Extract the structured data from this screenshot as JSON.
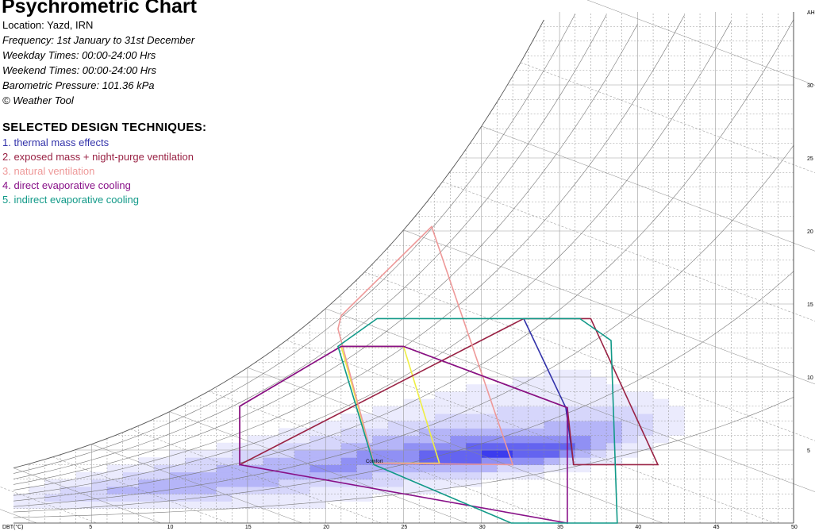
{
  "header": {
    "title": "Psychrometric Chart",
    "location": "Location: Yazd, IRN",
    "frequency": "Frequency: 1st January to 31st December",
    "weekday": "Weekday Times: 00:00-24:00 Hrs",
    "weekend": "Weekend Times: 00:00-24:00 Hrs",
    "pressure": "Barometric Pressure: 101.36 kPa",
    "credit": "© Weather Tool"
  },
  "techniques": {
    "heading": "SELECTED DESIGN TECHNIQUES:",
    "items": [
      {
        "label": "1. thermal mass effects",
        "color": "#3333aa"
      },
      {
        "label": "2. exposed mass + night-purge ventilation",
        "color": "#992244"
      },
      {
        "label": "3. natural ventilation",
        "color": "#ee9999"
      },
      {
        "label": "4. direct evaporative cooling",
        "color": "#881188"
      },
      {
        "label": "5. indirect evaporative cooling",
        "color": "#119988"
      }
    ]
  },
  "chart_data": {
    "type": "heatmap",
    "xlabel": "DBT(°C)",
    "ylabel": "AH",
    "xlim": [
      0,
      50
    ],
    "ylim": [
      0,
      35
    ],
    "x_ticks": [
      5,
      10,
      15,
      20,
      25,
      30,
      35,
      40,
      45,
      50
    ],
    "y_ticks": [
      5,
      10,
      15,
      20,
      25,
      30
    ],
    "grid": true,
    "comfort_label": "Comfort",
    "zones": [
      {
        "name": "comfort",
        "color": "#eeee44",
        "points": [
          [
            21,
            12.1
          ],
          [
            25,
            12.1
          ],
          [
            27.3,
            4.1
          ],
          [
            23.1,
            4.1
          ]
        ]
      },
      {
        "name": "thermal mass effects",
        "color": "#3333aa",
        "points": [
          [
            32.7,
            14
          ],
          [
            35.4,
            7.9
          ],
          [
            35.9,
            4
          ]
        ]
      },
      {
        "name": "exposed mass + night-purge ventilation",
        "color": "#992244",
        "points": [
          [
            14.5,
            4
          ],
          [
            14.5,
            8
          ],
          [
            21,
            12.1
          ],
          [
            25,
            12.1
          ],
          [
            35.5,
            7.9
          ],
          [
            35.9,
            4
          ],
          [
            41.3,
            4
          ],
          [
            37,
            14
          ],
          [
            32.7,
            14
          ]
        ]
      },
      {
        "name": "natural ventilation",
        "color": "#ee9999",
        "points": [
          [
            23.1,
            4.1
          ],
          [
            20.8,
            13.3
          ],
          [
            21,
            14.2
          ],
          [
            26.8,
            20.3
          ],
          [
            32,
            4
          ]
        ]
      },
      {
        "name": "direct evaporative cooling",
        "color": "#881188",
        "points": [
          [
            14.5,
            4
          ],
          [
            14.5,
            8
          ],
          [
            21,
            12.1
          ],
          [
            25,
            12.1
          ],
          [
            35.5,
            7.9
          ],
          [
            35.5,
            0
          ]
        ]
      },
      {
        "name": "indirect evaporative cooling",
        "color": "#119988",
        "points": [
          [
            20.8,
            12.1
          ],
          [
            23.3,
            14
          ],
          [
            36.3,
            14
          ],
          [
            38.3,
            12.5
          ],
          [
            38.7,
            0
          ],
          [
            31.9,
            0
          ],
          [
            23.1,
            4
          ]
        ]
      }
    ],
    "psychro": {
      "rh_curves": [
        0.1,
        0.2,
        0.3,
        0.4,
        0.5,
        0.6,
        0.7,
        0.8,
        0.9,
        1.0
      ]
    },
    "bins": {
      "x_start": 0,
      "x_step": 1,
      "y_step": 0.5,
      "rows": [
        {
          "y": 1.0,
          "cells": [
            1,
            1,
            1,
            1,
            1,
            1,
            1,
            1,
            1,
            1,
            1,
            1,
            1,
            1,
            1,
            1,
            1,
            1,
            1,
            1,
            0,
            0,
            0,
            0,
            0,
            0,
            0,
            0,
            0,
            0,
            0,
            0,
            0,
            0,
            0,
            0,
            0,
            0,
            0,
            0,
            0,
            0,
            0,
            0
          ]
        },
        {
          "y": 1.5,
          "cells": [
            1,
            1,
            2,
            2,
            2,
            2,
            2,
            2,
            2,
            2,
            2,
            2,
            2,
            2,
            1,
            1,
            1,
            1,
            1,
            1,
            1,
            1,
            1,
            0,
            0,
            0,
            0,
            0,
            0,
            0,
            0,
            0,
            0,
            0,
            0,
            0,
            0,
            0,
            0,
            0,
            0,
            0,
            0,
            0
          ]
        },
        {
          "y": 2.0,
          "cells": [
            0,
            1,
            1,
            2,
            2,
            2,
            3,
            3,
            3,
            3,
            3,
            3,
            3,
            2,
            2,
            2,
            2,
            2,
            2,
            1,
            1,
            1,
            1,
            1,
            1,
            1,
            1,
            1,
            0,
            0,
            0,
            0,
            0,
            0,
            0,
            0,
            0,
            0,
            0,
            0,
            0,
            0,
            0,
            0
          ]
        },
        {
          "y": 2.5,
          "cells": [
            0,
            0,
            1,
            1,
            1,
            2,
            2,
            2,
            3,
            3,
            3,
            3,
            3,
            3,
            3,
            3,
            3,
            2,
            2,
            2,
            2,
            2,
            2,
            2,
            2,
            1,
            1,
            1,
            1,
            1,
            0,
            0,
            0,
            0,
            0,
            0,
            0,
            0,
            0,
            0,
            0,
            0,
            0,
            0
          ]
        },
        {
          "y": 3.0,
          "cells": [
            0,
            0,
            0,
            0,
            1,
            1,
            1,
            2,
            2,
            2,
            3,
            3,
            3,
            3,
            3,
            3,
            3,
            3,
            3,
            3,
            3,
            3,
            3,
            2,
            2,
            2,
            2,
            2,
            2,
            2,
            1,
            1,
            1,
            1,
            0,
            0,
            0,
            0,
            0,
            0,
            0,
            0,
            0,
            0
          ]
        },
        {
          "y": 3.5,
          "cells": [
            0,
            0,
            0,
            0,
            0,
            0,
            1,
            1,
            1,
            2,
            2,
            2,
            2,
            3,
            3,
            3,
            3,
            3,
            3,
            4,
            4,
            4,
            3,
            3,
            3,
            3,
            3,
            3,
            3,
            3,
            3,
            2,
            2,
            2,
            1,
            1,
            1,
            0,
            0,
            0,
            0,
            0,
            0,
            0
          ]
        },
        {
          "y": 4.0,
          "cells": [
            0,
            0,
            0,
            0,
            0,
            0,
            0,
            0,
            1,
            1,
            1,
            2,
            2,
            2,
            2,
            2,
            3,
            3,
            3,
            3,
            3,
            4,
            4,
            4,
            4,
            4,
            5,
            5,
            5,
            5,
            4,
            4,
            4,
            4,
            3,
            2,
            2,
            1,
            1,
            0,
            0,
            0,
            0,
            0
          ]
        },
        {
          "y": 4.5,
          "cells": [
            0,
            0,
            0,
            0,
            0,
            0,
            0,
            0,
            0,
            0,
            1,
            1,
            1,
            1,
            2,
            2,
            2,
            2,
            3,
            3,
            3,
            3,
            4,
            4,
            4,
            4,
            5,
            5,
            5,
            5,
            6,
            6,
            5,
            5,
            5,
            4,
            3,
            2,
            1,
            1,
            0,
            0,
            0,
            0
          ]
        },
        {
          "y": 5.0,
          "cells": [
            0,
            0,
            0,
            0,
            0,
            0,
            0,
            0,
            0,
            0,
            0,
            0,
            0,
            1,
            1,
            1,
            1,
            2,
            2,
            2,
            2,
            3,
            3,
            3,
            3,
            4,
            4,
            4,
            4,
            5,
            5,
            5,
            5,
            5,
            5,
            5,
            4,
            3,
            2,
            1,
            1,
            0,
            0,
            0
          ]
        },
        {
          "y": 5.5,
          "cells": [
            0,
            0,
            0,
            0,
            0,
            0,
            0,
            0,
            0,
            0,
            0,
            0,
            0,
            0,
            0,
            1,
            1,
            1,
            1,
            2,
            2,
            2,
            2,
            3,
            3,
            3,
            3,
            3,
            4,
            4,
            4,
            4,
            4,
            4,
            4,
            4,
            4,
            3,
            3,
            2,
            1,
            1,
            0,
            0
          ]
        },
        {
          "y": 6.0,
          "cells": [
            0,
            0,
            0,
            0,
            0,
            0,
            0,
            0,
            0,
            0,
            0,
            0,
            0,
            0,
            0,
            0,
            0,
            1,
            1,
            1,
            1,
            2,
            2,
            2,
            2,
            2,
            3,
            3,
            3,
            3,
            3,
            3,
            3,
            3,
            3,
            3,
            3,
            3,
            3,
            2,
            2,
            1,
            1,
            0
          ]
        },
        {
          "y": 6.5,
          "cells": [
            0,
            0,
            0,
            0,
            0,
            0,
            0,
            0,
            0,
            0,
            0,
            0,
            0,
            0,
            0,
            0,
            0,
            0,
            0,
            1,
            1,
            1,
            1,
            1,
            2,
            2,
            2,
            2,
            2,
            2,
            2,
            2,
            2,
            2,
            3,
            3,
            3,
            3,
            3,
            2,
            2,
            1,
            1,
            0
          ]
        },
        {
          "y": 7.0,
          "cells": [
            0,
            0,
            0,
            0,
            0,
            0,
            0,
            0,
            0,
            0,
            0,
            0,
            0,
            0,
            0,
            0,
            0,
            0,
            0,
            0,
            0,
            1,
            1,
            1,
            1,
            1,
            1,
            2,
            2,
            2,
            2,
            2,
            2,
            2,
            2,
            2,
            2,
            2,
            2,
            2,
            2,
            1,
            1,
            0
          ]
        },
        {
          "y": 7.5,
          "cells": [
            0,
            0,
            0,
            0,
            0,
            0,
            0,
            0,
            0,
            0,
            0,
            0,
            0,
            0,
            0,
            0,
            0,
            0,
            0,
            0,
            0,
            0,
            0,
            1,
            1,
            1,
            1,
            1,
            1,
            1,
            1,
            2,
            2,
            2,
            2,
            2,
            2,
            2,
            2,
            2,
            1,
            1,
            1,
            0
          ]
        },
        {
          "y": 8.0,
          "cells": [
            0,
            0,
            0,
            0,
            0,
            0,
            0,
            0,
            0,
            0,
            0,
            0,
            0,
            0,
            0,
            0,
            0,
            0,
            0,
            0,
            0,
            0,
            0,
            0,
            0,
            1,
            1,
            1,
            1,
            1,
            1,
            1,
            1,
            1,
            1,
            1,
            1,
            1,
            1,
            1,
            1,
            1,
            0,
            0
          ]
        },
        {
          "y": 8.5,
          "cells": [
            0,
            0,
            0,
            0,
            0,
            0,
            0,
            0,
            0,
            0,
            0,
            0,
            0,
            0,
            0,
            0,
            0,
            0,
            0,
            0,
            0,
            0,
            0,
            0,
            0,
            0,
            0,
            1,
            1,
            1,
            1,
            1,
            1,
            1,
            1,
            1,
            1,
            1,
            1,
            1,
            1,
            0,
            0,
            0
          ]
        },
        {
          "y": 9.0,
          "cells": [
            0,
            0,
            0,
            0,
            0,
            0,
            0,
            0,
            0,
            0,
            0,
            0,
            0,
            0,
            0,
            0,
            0,
            0,
            0,
            0,
            0,
            0,
            0,
            0,
            0,
            0,
            0,
            0,
            0,
            1,
            1,
            1,
            1,
            1,
            1,
            1,
            1,
            1,
            1,
            0,
            0,
            0,
            0,
            0
          ]
        },
        {
          "y": 9.5,
          "cells": [
            0,
            0,
            0,
            0,
            0,
            0,
            0,
            0,
            0,
            0,
            0,
            0,
            0,
            0,
            0,
            0,
            0,
            0,
            0,
            0,
            0,
            0,
            0,
            0,
            0,
            0,
            0,
            0,
            0,
            0,
            0,
            0,
            1,
            1,
            1,
            1,
            1,
            1,
            0,
            0,
            0,
            0,
            0,
            0
          ]
        },
        {
          "y": 10.0,
          "cells": [
            0,
            0,
            0,
            0,
            0,
            0,
            0,
            0,
            0,
            0,
            0,
            0,
            0,
            0,
            0,
            0,
            0,
            0,
            0,
            0,
            0,
            0,
            0,
            0,
            0,
            0,
            0,
            0,
            0,
            0,
            0,
            0,
            0,
            0,
            1,
            1,
            1,
            0,
            0,
            0,
            0,
            0,
            0,
            0
          ]
        }
      ]
    }
  }
}
